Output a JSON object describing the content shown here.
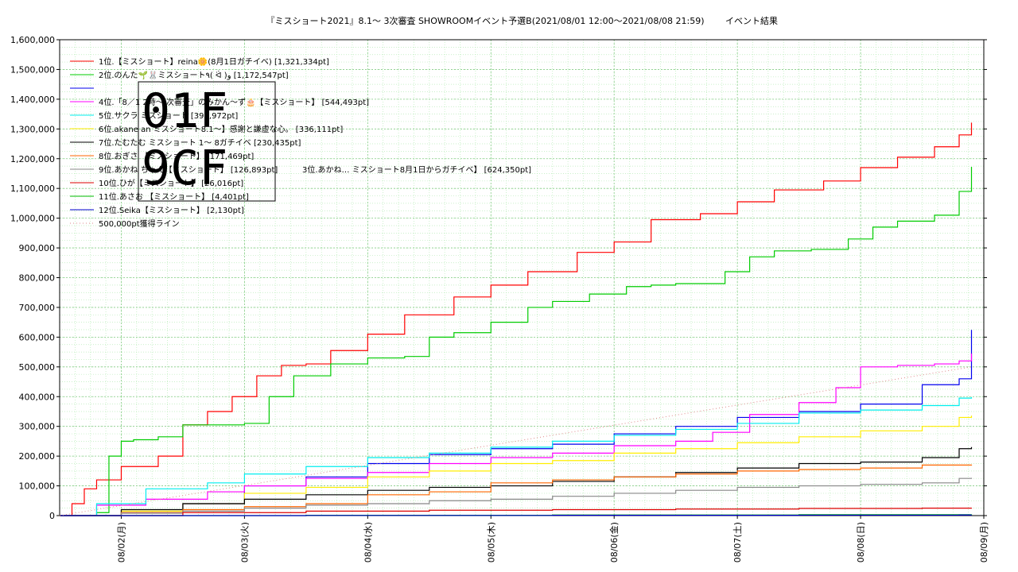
{
  "chart_data": {
    "type": "line",
    "title": "『ミスショート2021』8.1〜 3次審査 SHOWROOMイベント予選B(2021/08/01 12:00〜2021/08/08 21:59)",
    "subtitle": "イベント結果",
    "ylim": [
      0,
      1600000
    ],
    "yticks": [
      0,
      100000,
      200000,
      300000,
      400000,
      500000,
      600000,
      700000,
      800000,
      900000,
      1000000,
      1100000,
      1200000,
      1300000,
      1400000,
      1500000,
      1600000
    ],
    "ytick_labels": [
      "0",
      "100,000",
      "200,000",
      "300,000",
      "400,000",
      "500,000",
      "600,000",
      "700,000",
      "800,000",
      "900,000",
      "1,000,000",
      "1,100,000",
      "1,200,000",
      "1,300,000",
      "1,400,000",
      "1,500,000",
      "1,600,000"
    ],
    "xlim": [
      0,
      7.5
    ],
    "xticks": [
      0.5,
      1.5,
      2.5,
      3.5,
      4.5,
      5.5,
      6.5,
      7.5
    ],
    "xtick_labels": [
      "08/02(月)",
      "08/03(火)",
      "08/04(水)",
      "08/05(木)",
      "08/06(金)",
      "08/07(土)",
      "08/08(日)",
      "08/09(月)"
    ],
    "grid": true,
    "legend_position": "top-left",
    "overlay_glyph": [
      "01F",
      "9CF"
    ],
    "series": [
      {
        "name": "1位.【ミスショート】reina🌼(8月1日ガチイベ) [1,321,334pt]",
        "color": "#ff0000",
        "x": [
          0,
          0.1,
          0.2,
          0.3,
          0.5,
          0.8,
          1.0,
          1.2,
          1.4,
          1.6,
          1.8,
          2.0,
          2.2,
          2.5,
          2.8,
          3.2,
          3.5,
          3.8,
          4.2,
          4.5,
          4.8,
          5.2,
          5.5,
          5.8,
          6.2,
          6.5,
          6.8,
          7.1,
          7.3,
          7.4
        ],
        "y": [
          0,
          40000,
          90000,
          120000,
          165000,
          200000,
          305000,
          350000,
          400000,
          470000,
          505000,
          510000,
          555000,
          610000,
          675000,
          735000,
          775000,
          820000,
          885000,
          920000,
          995000,
          1015000,
          1055000,
          1095000,
          1125000,
          1170000,
          1205000,
          1240000,
          1280000,
          1321334
        ]
      },
      {
        "name": "2位.のんた🌱🐰ミスショート٩( ᐛ )و [1,172,547pt]",
        "color": "#00cc00",
        "x": [
          0,
          0.3,
          0.4,
          0.5,
          0.6,
          0.8,
          1.0,
          1.5,
          1.7,
          1.9,
          2.2,
          2.5,
          2.8,
          3.0,
          3.2,
          3.5,
          3.8,
          4.0,
          4.3,
          4.6,
          4.8,
          5.0,
          5.4,
          5.6,
          5.8,
          6.1,
          6.4,
          6.6,
          6.8,
          7.1,
          7.3,
          7.4
        ],
        "y": [
          0,
          10000,
          200000,
          250000,
          255000,
          265000,
          305000,
          310000,
          400000,
          470000,
          510000,
          530000,
          535000,
          600000,
          615000,
          650000,
          700000,
          720000,
          745000,
          770000,
          775000,
          780000,
          820000,
          870000,
          890000,
          895000,
          930000,
          970000,
          990000,
          1010000,
          1090000,
          1172547
        ]
      },
      {
        "name": "",
        "color": "#0000ee",
        "x": [
          0,
          0.5,
          1.0,
          1.5,
          2.0,
          2.5,
          3.0,
          3.5,
          4.0,
          4.5,
          5.0,
          5.5,
          6.0,
          6.5,
          7.0,
          7.3,
          7.4
        ],
        "y": [
          0,
          10000,
          40000,
          100000,
          130000,
          175000,
          205000,
          225000,
          240000,
          275000,
          300000,
          330000,
          350000,
          375000,
          440000,
          460000,
          624350
        ]
      },
      {
        "name": "4位.「8／1 2時〜 次審査」のみかん〜ず🎂【ミスショート】 [544,493pt]",
        "color": "#ff00ff",
        "x": [
          0,
          0.3,
          0.7,
          1.2,
          1.5,
          2.0,
          2.5,
          3.0,
          3.5,
          4.0,
          4.5,
          5.0,
          5.3,
          5.6,
          6.0,
          6.3,
          6.5,
          6.8,
          7.1,
          7.3,
          7.4
        ],
        "y": [
          0,
          35000,
          55000,
          80000,
          100000,
          125000,
          145000,
          175000,
          195000,
          210000,
          235000,
          250000,
          280000,
          340000,
          380000,
          430000,
          500000,
          505000,
          510000,
          520000,
          544493
        ]
      },
      {
        "name": "5位.サクラ ミスショート [397,972pt]",
        "color": "#00eeee",
        "x": [
          0,
          0.3,
          0.7,
          1.2,
          1.5,
          2.0,
          2.5,
          3.0,
          3.5,
          4.0,
          4.5,
          5.0,
          5.5,
          6.0,
          6.5,
          7.0,
          7.3,
          7.4
        ],
        "y": [
          0,
          40000,
          90000,
          110000,
          140000,
          165000,
          195000,
          210000,
          230000,
          250000,
          270000,
          290000,
          310000,
          345000,
          355000,
          370000,
          395000,
          397972
        ]
      },
      {
        "name": "6位.akane an ミスショート8.1〜】感謝と謙虚な心。 [336,111pt]",
        "color": "#ffee00",
        "x": [
          0,
          0.5,
          1.0,
          1.5,
          2.0,
          2.5,
          3.0,
          3.5,
          4.0,
          4.5,
          5.0,
          5.5,
          6.0,
          6.5,
          7.0,
          7.3,
          7.4
        ],
        "y": [
          0,
          15000,
          40000,
          75000,
          95000,
          130000,
          150000,
          175000,
          185000,
          210000,
          225000,
          245000,
          265000,
          285000,
          300000,
          330000,
          336111
        ]
      },
      {
        "name": "7位.たむたむ ミスショート 1〜 8ガチイベ [230,435pt]",
        "color": "#000000",
        "x": [
          0,
          0.5,
          1.0,
          1.5,
          2.0,
          2.5,
          3.0,
          3.5,
          4.0,
          4.5,
          5.0,
          5.5,
          6.0,
          6.5,
          7.0,
          7.3,
          7.4
        ],
        "y": [
          0,
          20000,
          40000,
          55000,
          70000,
          85000,
          95000,
          100000,
          115000,
          130000,
          145000,
          160000,
          175000,
          180000,
          195000,
          225000,
          230435
        ]
      },
      {
        "name": "8位.おぎさ 【ミスショート】 [171,469pt]",
        "color": "#ff6600",
        "x": [
          0,
          0.5,
          1.0,
          1.5,
          2.0,
          2.5,
          3.0,
          3.5,
          4.0,
          4.5,
          5.0,
          5.5,
          6.0,
          6.5,
          7.0,
          7.4
        ],
        "y": [
          0,
          10000,
          20000,
          30000,
          40000,
          70000,
          80000,
          110000,
          120000,
          130000,
          140000,
          150000,
          155000,
          160000,
          170000,
          171469
        ]
      },
      {
        "name": "9位.あかね ちゃん【ミスショート】 [126,893pt]",
        "color": "#888888",
        "x": [
          0,
          0.5,
          1.0,
          1.5,
          2.0,
          2.5,
          3.0,
          3.5,
          4.0,
          4.5,
          5.0,
          5.5,
          6.0,
          6.5,
          7.0,
          7.3,
          7.4
        ],
        "y": [
          0,
          8000,
          15000,
          25000,
          35000,
          40000,
          50000,
          55000,
          65000,
          75000,
          85000,
          95000,
          100000,
          105000,
          110000,
          125000,
          126893
        ]
      },
      {
        "name": "10位.ひが【ミスショート】 [26,016pt]",
        "color": "#dd0000",
        "x": [
          0,
          1.0,
          2.0,
          3.0,
          4.0,
          5.0,
          6.0,
          7.0,
          7.4
        ],
        "y": [
          0,
          10000,
          15000,
          18000,
          20000,
          22000,
          24000,
          25000,
          26016
        ]
      },
      {
        "name": "11位.あさお 【ミスショート】 [4,401pt]",
        "color": "#00bb00",
        "x": [
          0,
          2.0,
          4.0,
          6.0,
          7.4
        ],
        "y": [
          0,
          1000,
          2000,
          3000,
          4401
        ]
      },
      {
        "name": "12位.Seika【ミスショート】 [2,130pt]",
        "color": "#0000cc",
        "x": [
          0,
          2.0,
          4.0,
          6.0,
          7.3,
          7.4
        ],
        "y": [
          0,
          500,
          1000,
          1500,
          2000,
          2130
        ]
      },
      {
        "name": "500,000pt獲得ライン",
        "color": "#dd8888",
        "dotted": true,
        "x": [
          0,
          7.4
        ],
        "y": [
          0,
          500000
        ]
      }
    ],
    "extra_legend": "3位.あかね… ミスショート8月1日からガチイベ】 [624,350pt]"
  }
}
